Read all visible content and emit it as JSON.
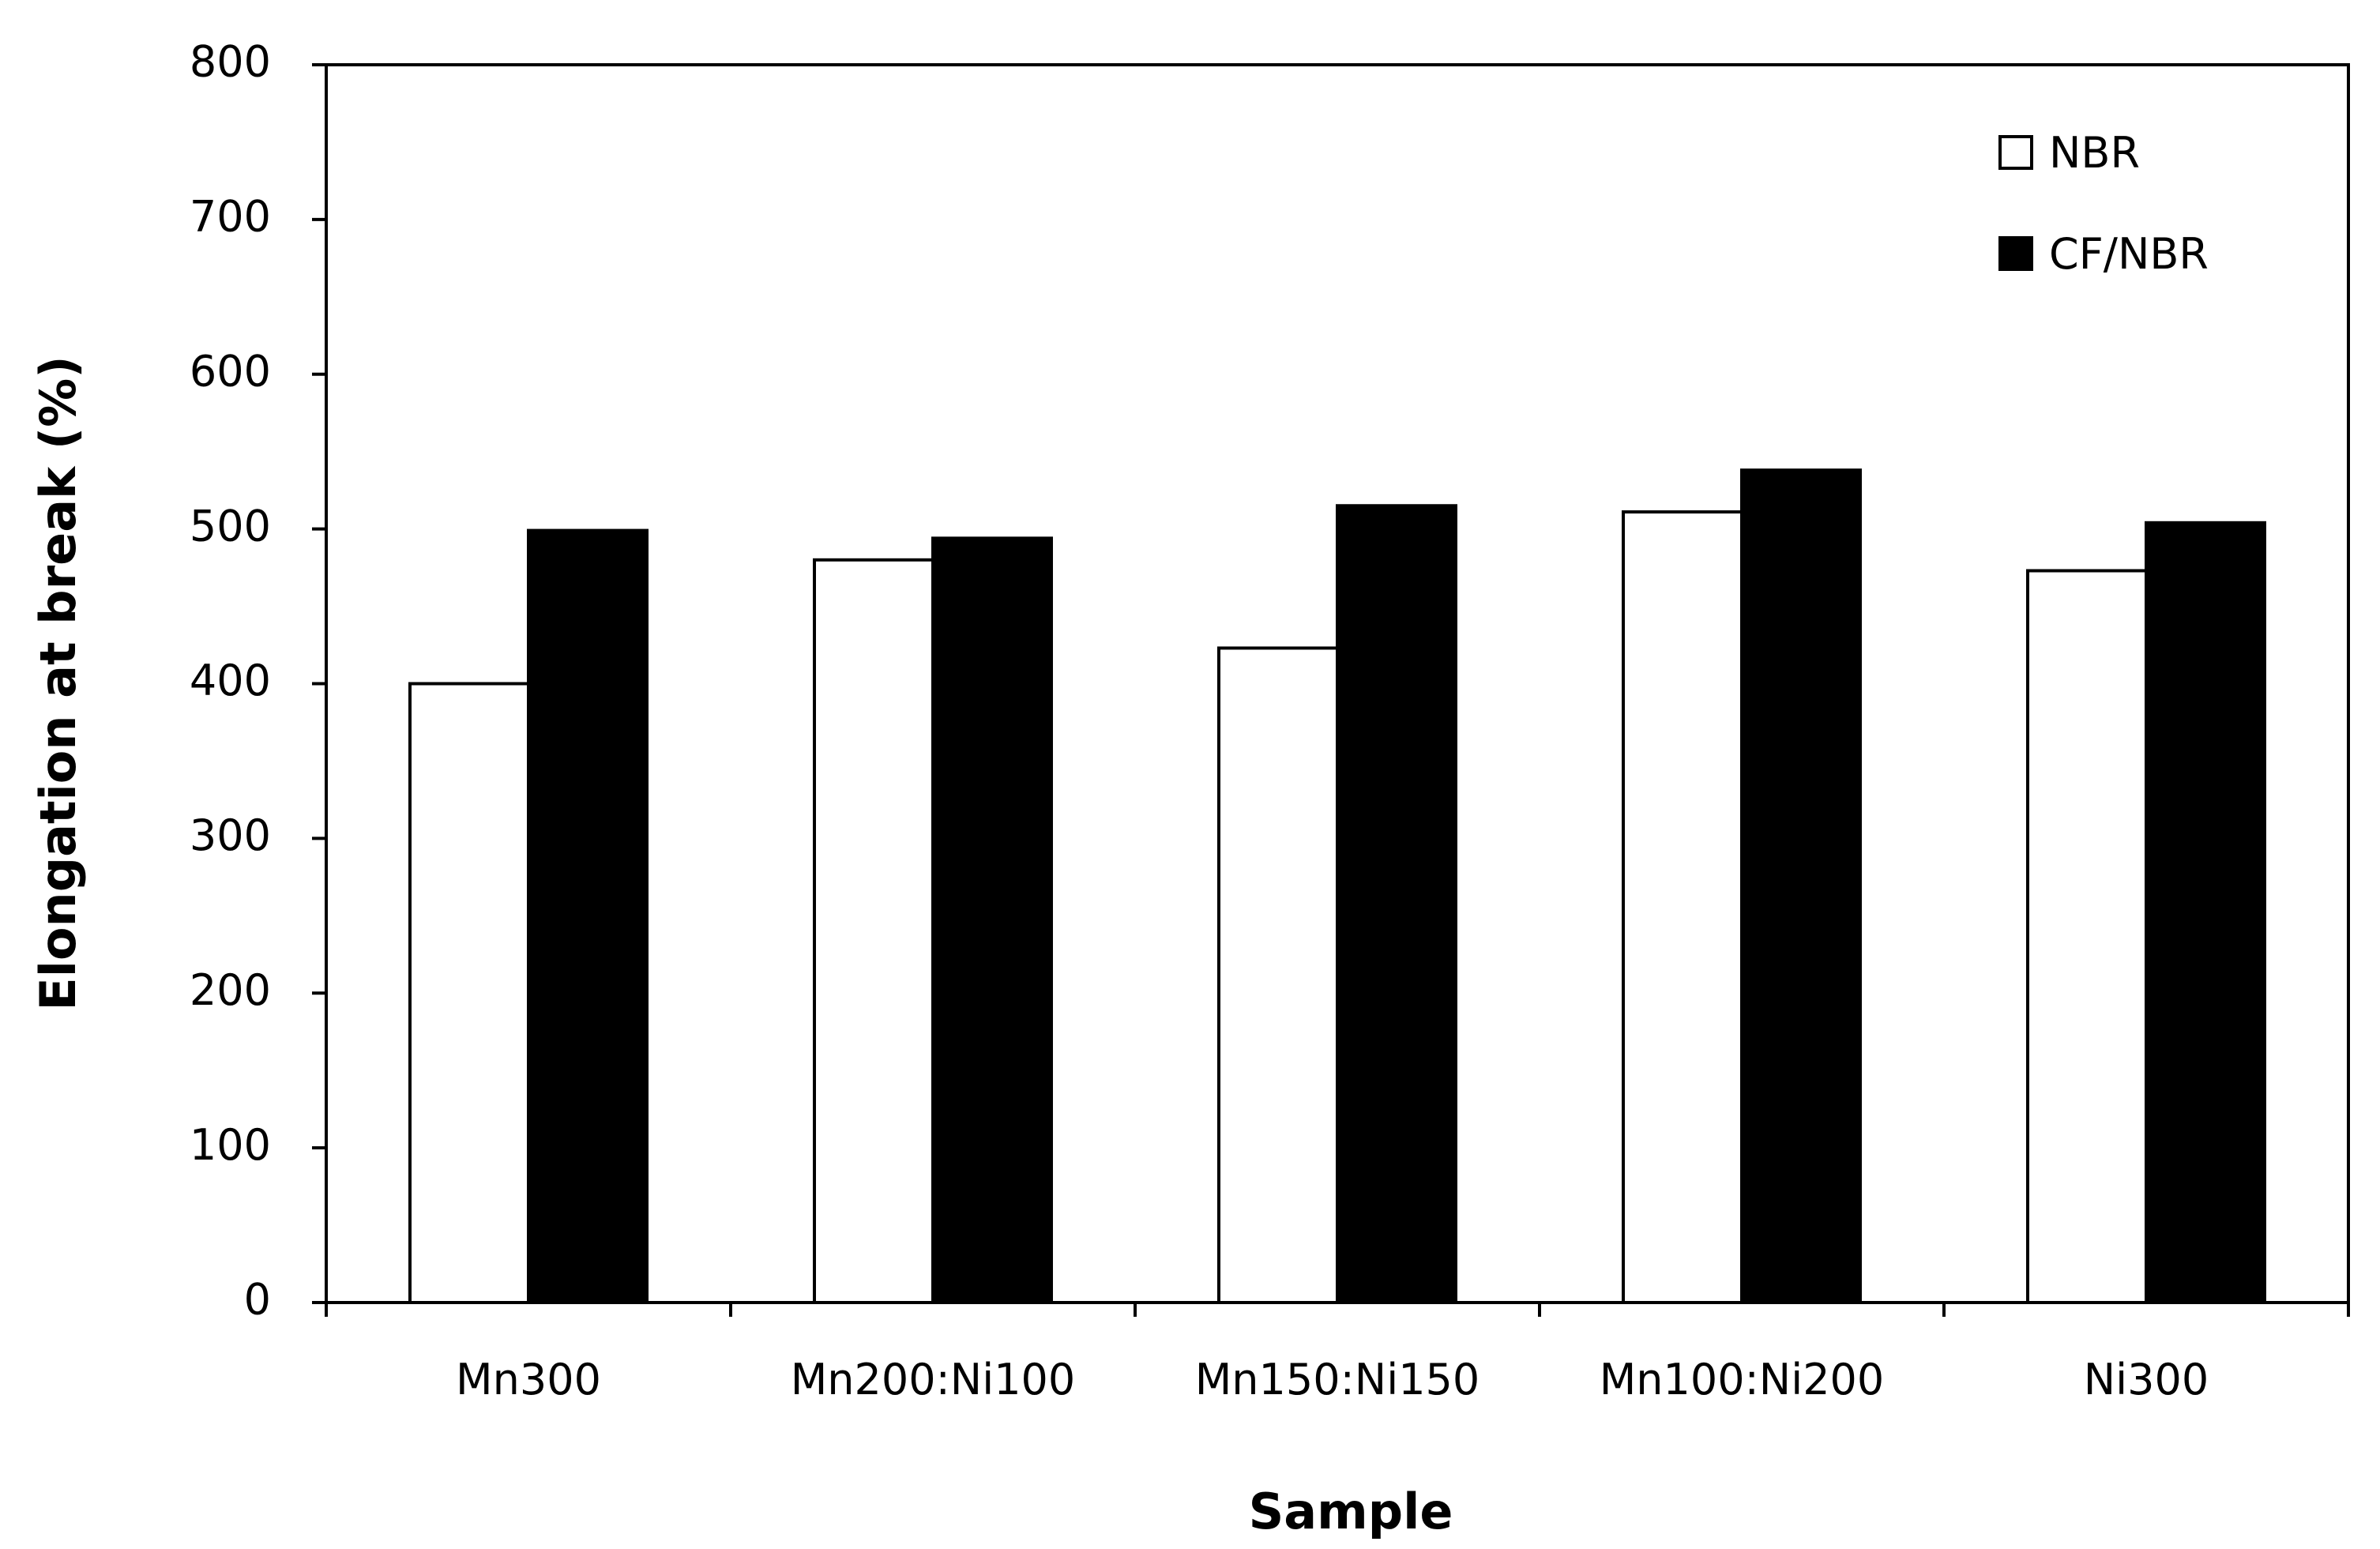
{
  "chart_data": {
    "type": "bar",
    "categories": [
      "Mn300",
      "Mn200:Ni100",
      "Mn150:Ni150",
      "Mn100:Ni200",
      "Ni300"
    ],
    "series": [
      {
        "name": "NBR",
        "values": [
          400,
          480,
          423,
          511,
          473
        ],
        "color": "#ffffff"
      },
      {
        "name": "CF/NBR",
        "values": [
          499,
          494,
          515,
          538,
          504
        ],
        "color": "#000000"
      }
    ],
    "xlabel": "Sample",
    "ylabel": "Elongation at break (%)",
    "ylim": [
      0,
      800
    ],
    "yticks": [
      0,
      100,
      200,
      300,
      400,
      500,
      600,
      700,
      800
    ],
    "grid": false,
    "legend_position": "top-right"
  }
}
